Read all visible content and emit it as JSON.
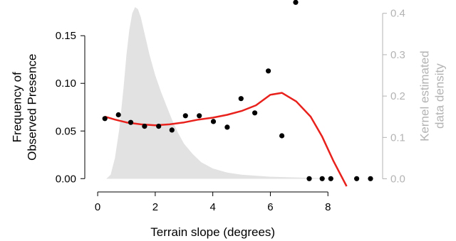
{
  "chart_data": {
    "type": "scatter",
    "title": "",
    "xlabel": "Terrain slope (degrees)",
    "ylabel_left": [
      "Frequency of",
      "Observed Presence"
    ],
    "ylabel_right": [
      "Kernel estimated",
      "data density"
    ],
    "xlim": [
      -0.2,
      9.9
    ],
    "ylim_left": [
      -0.008,
      0.18
    ],
    "ylim_right": [
      -0.018,
      0.415
    ],
    "x_ticks": [
      0,
      2,
      4,
      6,
      8
    ],
    "x_tick_labels": [
      "0",
      "2",
      "4",
      "6",
      "8"
    ],
    "y_left_ticks": [
      0,
      0.05,
      0.1,
      0.15
    ],
    "y_left_tick_labels": [
      "0.00",
      "0.05",
      "0.10",
      "0.15"
    ],
    "y_right_ticks": [
      0,
      0.1,
      0.2,
      0.3,
      0.4
    ],
    "y_right_tick_labels": [
      "0.0",
      "0.1",
      "0.2",
      "0.3",
      "0.4"
    ],
    "grid": false,
    "colors": {
      "points": "#000000",
      "fit_line": "#e8211c",
      "density_fill": "#e2e2e2",
      "right_axis": "#b3b3b3"
    },
    "series": [
      {
        "kind": "points",
        "axis": "left",
        "x": [
          0.25,
          0.72,
          1.15,
          1.63,
          2.12,
          2.58,
          3.05,
          3.53,
          4.02,
          4.5,
          4.98,
          5.46,
          5.93,
          6.4,
          6.88,
          7.35,
          7.8,
          8.1,
          9.0,
          9.48
        ],
        "y": [
          0.063,
          0.067,
          0.059,
          0.055,
          0.055,
          0.051,
          0.066,
          0.066,
          0.06,
          0.054,
          0.084,
          0.069,
          0.113,
          0.045,
          0.185,
          0.0,
          0.0,
          0.0,
          0.0,
          0.0
        ]
      },
      {
        "kind": "line",
        "axis": "left",
        "x": [
          0.25,
          0.6,
          1.0,
          1.5,
          2.0,
          2.5,
          3.0,
          3.5,
          4.0,
          4.5,
          5.0,
          5.5,
          6.0,
          6.4,
          6.9,
          7.4,
          7.8,
          8.2,
          8.65
        ],
        "y": [
          0.065,
          0.062,
          0.059,
          0.057,
          0.056,
          0.057,
          0.059,
          0.062,
          0.064,
          0.067,
          0.071,
          0.077,
          0.088,
          0.09,
          0.081,
          0.065,
          0.044,
          0.018,
          -0.008
        ]
      },
      {
        "kind": "area",
        "axis": "right",
        "x": [
          0.3,
          0.45,
          0.6,
          0.75,
          0.9,
          1.0,
          1.1,
          1.2,
          1.3,
          1.4,
          1.5,
          1.6,
          1.7,
          1.8,
          2.0,
          2.2,
          2.4,
          2.6,
          2.8,
          3.0,
          3.3,
          3.6,
          4.0,
          4.5,
          5.0,
          6.0,
          7.0,
          8.0,
          8.3
        ],
        "y": [
          0.0,
          0.01,
          0.05,
          0.12,
          0.22,
          0.3,
          0.36,
          0.4,
          0.415,
          0.41,
          0.39,
          0.36,
          0.33,
          0.3,
          0.25,
          0.21,
          0.175,
          0.14,
          0.11,
          0.085,
          0.06,
          0.04,
          0.025,
          0.015,
          0.01,
          0.005,
          0.003,
          0.001,
          0.0
        ]
      }
    ]
  }
}
